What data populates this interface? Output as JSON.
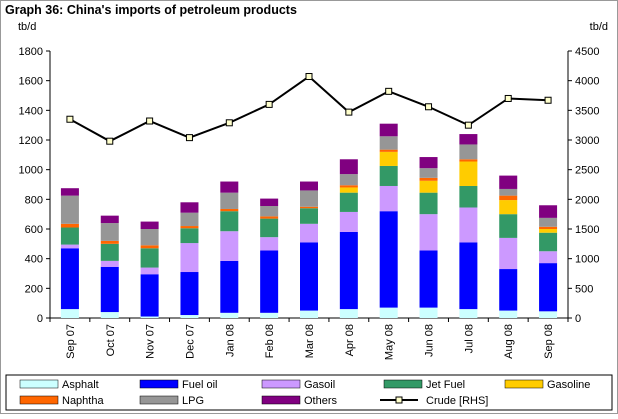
{
  "chart_data": {
    "type": "bar",
    "title": "Graph 36: China's imports of petroleum products",
    "ylabel_left": "tb/d",
    "ylabel_right": "tb/d",
    "ylim_left": [
      0,
      1800
    ],
    "ylim_right": [
      0,
      4500
    ],
    "yticks_left": [
      "0",
      "200",
      "400",
      "600",
      "800",
      "1000",
      "1200",
      "1400",
      "1600",
      "1800"
    ],
    "yticks_right": [
      "0",
      "500",
      "1000",
      "1500",
      "2000",
      "2500",
      "3000",
      "3500",
      "4000",
      "4500"
    ],
    "grid": false,
    "legend_position": "bottom",
    "categories": [
      "Sep 07",
      "Oct 07",
      "Nov 07",
      "Dec 07",
      "Jan 08",
      "Feb 08",
      "Mar 08",
      "Apr 08",
      "May 08",
      "Jun 08",
      "Jul 08",
      "Aug 08",
      "Sep 08"
    ],
    "series": [
      {
        "name": "Asphalt",
        "color": "#ccffff",
        "values": [
          60,
          40,
          10,
          20,
          35,
          35,
          50,
          60,
          70,
          70,
          60,
          50,
          45
        ]
      },
      {
        "name": "Fuel oil",
        "color": "#0000ff",
        "values": [
          410,
          305,
          285,
          290,
          350,
          420,
          460,
          520,
          650,
          385,
          450,
          280,
          325
        ]
      },
      {
        "name": "Gasoil",
        "color": "#cc99ff",
        "values": [
          25,
          40,
          45,
          195,
          200,
          90,
          125,
          135,
          170,
          245,
          235,
          210,
          80
        ]
      },
      {
        "name": "Jet Fuel",
        "color": "#339966",
        "values": [
          115,
          115,
          130,
          100,
          135,
          125,
          105,
          130,
          135,
          145,
          145,
          160,
          125
        ]
      },
      {
        "name": "Gasoline",
        "color": "#ffcc00",
        "values": [
          0,
          0,
          0,
          0,
          0,
          0,
          0,
          35,
          95,
          80,
          165,
          95,
          25
        ]
      },
      {
        "name": "Naphtha",
        "color": "#ff6600",
        "values": [
          25,
          20,
          20,
          15,
          15,
          15,
          10,
          15,
          15,
          20,
          15,
          30,
          15
        ]
      },
      {
        "name": "LPG",
        "color": "#969696",
        "values": [
          190,
          120,
          110,
          90,
          110,
          70,
          110,
          75,
          90,
          65,
          100,
          45,
          60
        ]
      },
      {
        "name": "Others",
        "color": "#800080",
        "values": [
          50,
          50,
          50,
          70,
          75,
          50,
          60,
          100,
          85,
          75,
          70,
          90,
          85
        ]
      }
    ],
    "line": {
      "name": "Crude [RHS]",
      "color": "#000000",
      "axis": "right",
      "values": [
        3350,
        2980,
        3320,
        3040,
        3290,
        3600,
        4070,
        3470,
        3820,
        3560,
        3250,
        3700,
        3670
      ]
    }
  }
}
